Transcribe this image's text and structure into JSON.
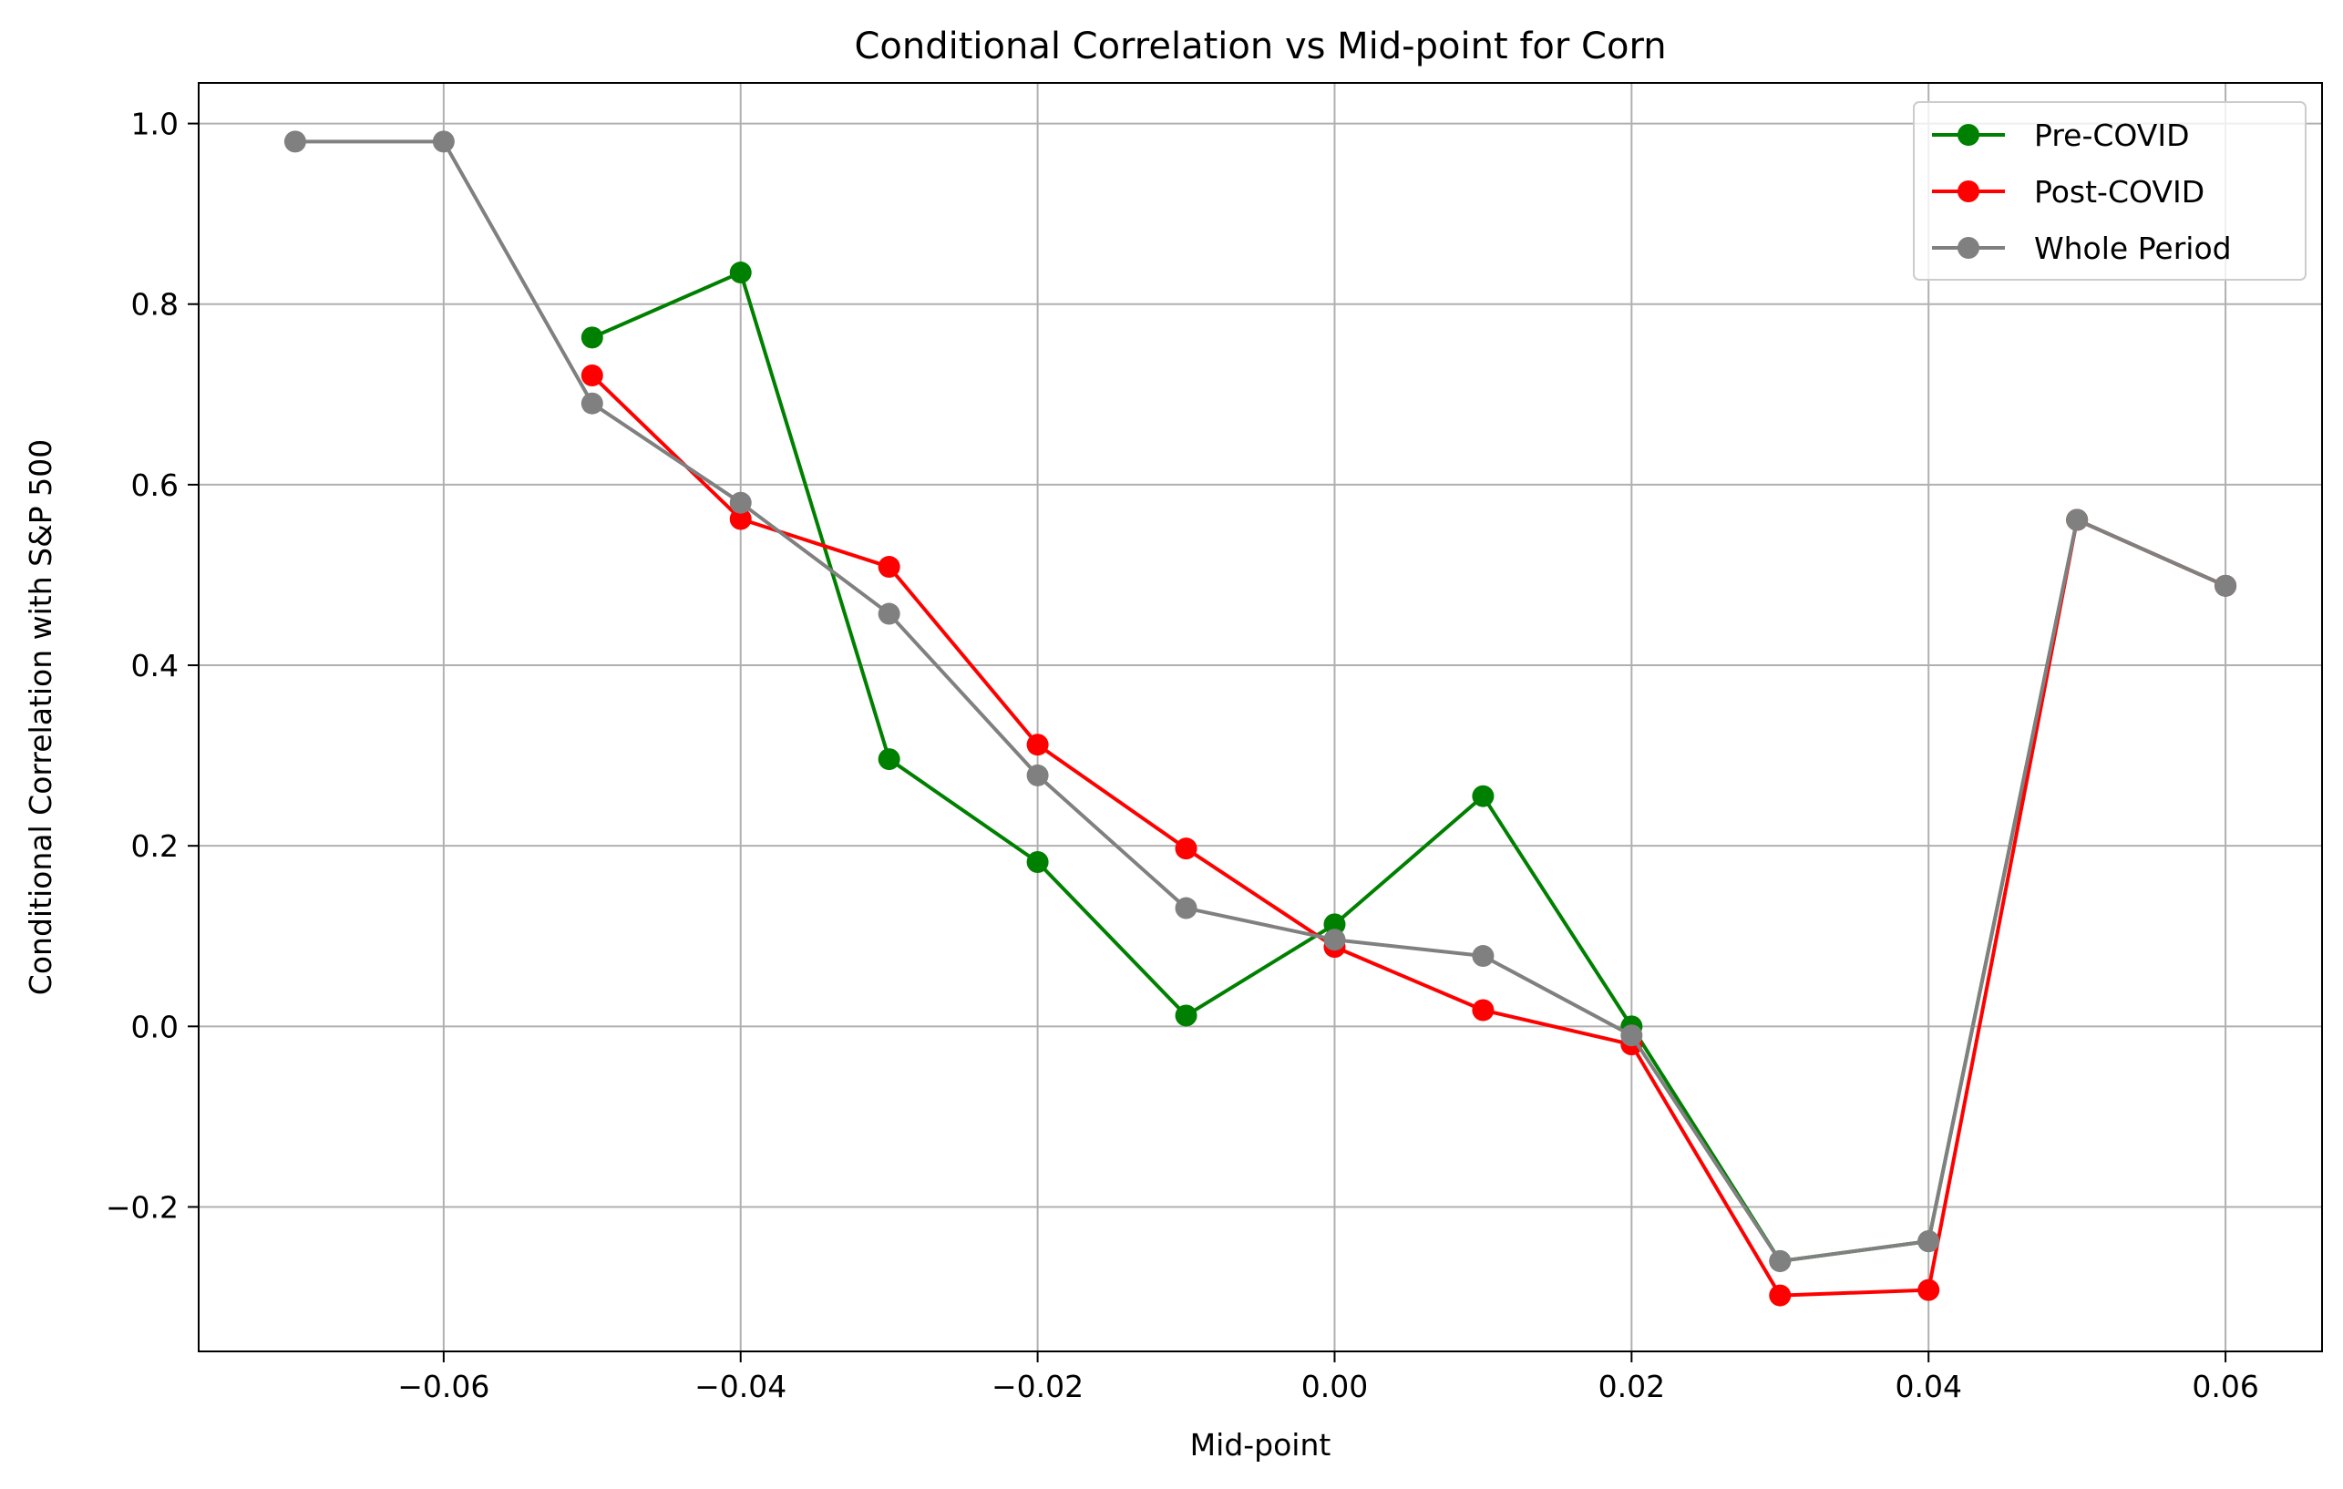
{
  "chart_data": {
    "type": "line",
    "title": "Conditional Correlation vs Mid-point for Corn",
    "xlabel": "Mid-point",
    "ylabel": "Conditional Correlation with S&P 500",
    "xlim": [
      -0.0765,
      0.0665
    ],
    "ylim": [
      -0.36,
      1.045
    ],
    "x_ticks": [
      -0.06,
      -0.04,
      -0.02,
      0.0,
      0.02,
      0.04,
      0.06
    ],
    "x_tick_labels": [
      "−0.06",
      "−0.04",
      "−0.02",
      "0.00",
      "0.02",
      "0.04",
      "0.06"
    ],
    "y_ticks": [
      -0.2,
      0.0,
      0.2,
      0.4,
      0.6,
      0.8,
      1.0
    ],
    "y_tick_labels": [
      "−0.2",
      "0.0",
      "0.2",
      "0.4",
      "0.6",
      "0.8",
      "1.0"
    ],
    "grid": true,
    "legend_position": "top-right",
    "series": [
      {
        "name": "Pre-COVID",
        "color": "#008000",
        "x": [
          -0.05,
          -0.04,
          -0.03,
          -0.02,
          -0.01,
          0.0,
          0.01,
          0.02,
          0.03,
          0.04,
          0.05,
          0.06
        ],
        "y": [
          0.763,
          0.835,
          0.296,
          0.182,
          0.012,
          0.113,
          0.255,
          0.0,
          -0.26,
          -0.238,
          0.561,
          0.488
        ]
      },
      {
        "name": "Post-COVID",
        "color": "#ff0000",
        "x": [
          -0.05,
          -0.04,
          -0.03,
          -0.02,
          -0.01,
          0.0,
          0.01,
          0.02,
          0.03,
          0.04,
          0.05,
          0.06
        ],
        "y": [
          0.721,
          0.562,
          0.509,
          0.312,
          0.197,
          0.088,
          0.018,
          -0.02,
          -0.298,
          -0.292,
          0.561,
          0.488
        ]
      },
      {
        "name": "Whole Period",
        "color": "#808080",
        "x": [
          -0.07,
          -0.06,
          -0.05,
          -0.04,
          -0.03,
          -0.02,
          -0.01,
          0.0,
          0.01,
          0.02,
          0.03,
          0.04,
          0.05,
          0.06
        ],
        "y": [
          0.98,
          0.98,
          0.69,
          0.58,
          0.457,
          0.278,
          0.131,
          0.096,
          0.078,
          -0.01,
          -0.26,
          -0.238,
          0.561,
          0.488
        ]
      }
    ]
  }
}
